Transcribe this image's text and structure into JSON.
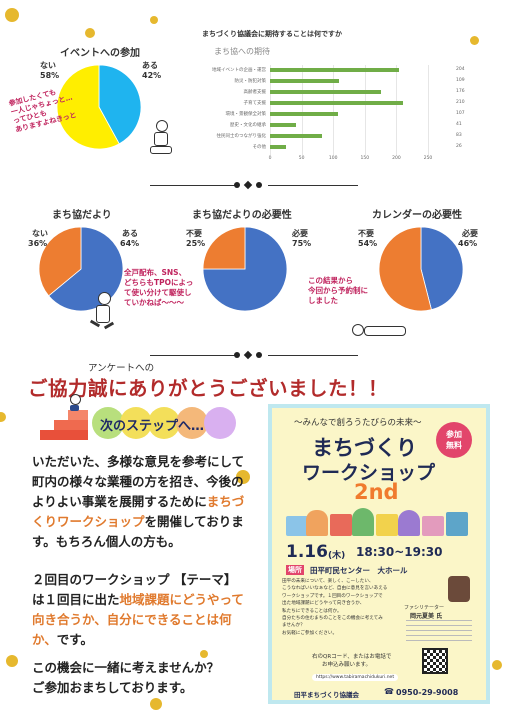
{
  "pie_event": {
    "title": "イベントへの参加",
    "no_label": "ない",
    "no_pct": "58%",
    "yes_label": "ある",
    "yes_pct": "42%",
    "note": [
      "参加したくても",
      "一人じゃちょっと…",
      "ってひとも",
      "ありますよねきっと"
    ]
  },
  "bar_chart": {
    "heading": "まちづくり協議会に期待することは何ですか",
    "subtitle": "まち協への期待"
  },
  "chart_data": [
    {
      "type": "pie",
      "title": "イベントへの参加",
      "labels": [
        "ある",
        "ない"
      ],
      "values": [
        42,
        58
      ],
      "colors": [
        "#1fb4ef",
        "#ffee00"
      ]
    },
    {
      "type": "bar",
      "title": "まち協への期待",
      "categories": [
        "地域イベントの企画・運営",
        "防災・防犯対策",
        "高齢者支援",
        "子育て支援",
        "環境・景観保全対策",
        "歴史・文化の継承",
        "住民同士のつながり強化",
        "その他"
      ],
      "values": [
        204,
        109,
        176,
        210,
        107,
        41,
        83,
        26
      ],
      "xlim": [
        0,
        250
      ],
      "xticks": [
        "0",
        "50",
        "100",
        "150",
        "200",
        "250"
      ],
      "color": "#70ad47"
    },
    {
      "type": "pie",
      "title": "まち協だより",
      "labels": [
        "ある",
        "ない"
      ],
      "values": [
        64,
        36
      ],
      "colors": [
        "#4472c4",
        "#ed7d31"
      ]
    },
    {
      "type": "pie",
      "title": "まち協だよりの必要性",
      "labels": [
        "必要",
        "不要"
      ],
      "values": [
        75,
        25
      ],
      "colors": [
        "#4472c4",
        "#ed7d31"
      ]
    },
    {
      "type": "pie",
      "title": "カレンダーの必要性",
      "labels": [
        "必要",
        "不要"
      ],
      "values": [
        46,
        54
      ],
      "colors": [
        "#4472c4",
        "#ed7d31"
      ]
    }
  ],
  "pie_dayori": {
    "title": "まち協だより",
    "no_label": "ない",
    "no_pct": "36%",
    "yes_label": "ある",
    "yes_pct": "64%",
    "note": [
      "全戸配布、SNS、",
      "どちらもTPOによっ",
      "て使い分けて駆使し",
      "ていかねば〜〜〜"
    ]
  },
  "pie_need": {
    "title": "まち協だよりの必要性",
    "no_label": "不要",
    "no_pct": "25%",
    "yes_label": "必要",
    "yes_pct": "75%"
  },
  "pie_calendar": {
    "title": "カレンダーの必要性",
    "no_label": "不要",
    "no_pct": "54%",
    "yes_label": "必要",
    "yes_pct": "46%",
    "note": [
      "この結果から",
      "今回から予約制に",
      "しました"
    ]
  },
  "thanks": {
    "small": "アンケートへの",
    "big": "ご協力誠にありがとうございました！！"
  },
  "next_step": "次のステップへ…",
  "body": {
    "p1_a": "いただいた、多様な意見を参考にして",
    "p1_b": "町内の様々な業種の方を招き、今後の",
    "p1_c": "よりよい事業を展開するために",
    "p1_c_hl": "まちづ",
    "p1_d_hl": "くりワークショップ",
    "p1_d": "を開催しておりま",
    "p1_e": "す。もちろん個人の方も。",
    "p2_a": "２回目のワークショップ 【テーマ】",
    "p2_b": "は１回目に出た",
    "p2_b_hl": "地域課題にどうやって",
    "p2_c_hl": "向き合うか、自分にできることは何",
    "p2_d_hl": "か、",
    "p2_d": "です。",
    "p3_a": "この機会に一緒に考えませんか？",
    "p3_b": "ご参加おまちしております。"
  },
  "flyer": {
    "tagline": "〜みんなで創ろうたびらの未来〜",
    "badge_a": "参加",
    "badge_b": "無料",
    "title_a": "まちづくり",
    "title_b": "ワークショップ",
    "edition": "2nd",
    "date": "1.16",
    "weekday": "(木)",
    "time": "18:30~19:30",
    "place_label": "場所",
    "place": "田平町民センター　大ホール",
    "desc": [
      "田平の未来について、楽しく、こーしたい、",
      "こうなればいいなぁなど、自由に意見を言いあえる",
      "ワークショップです。１回目のワークショップで",
      "出た地域課題にどうやって向き合うか、",
      "私たちにできることは何か。",
      "自分たちの住むまちのことをこの機会に考えてみ",
      "ませんか？",
      "お気軽にご参加ください。"
    ],
    "facilitator_label": "ファシリテーター",
    "facilitator_name": "岡元夏美 氏",
    "qr_note_a": "右のQRコード、またはお電話で",
    "qr_note_b": "お申込み願います。",
    "url": "https://www.tabiramachidukuri.net",
    "org": "田平まちづくり協議会",
    "phone": "0950-29-9008"
  }
}
